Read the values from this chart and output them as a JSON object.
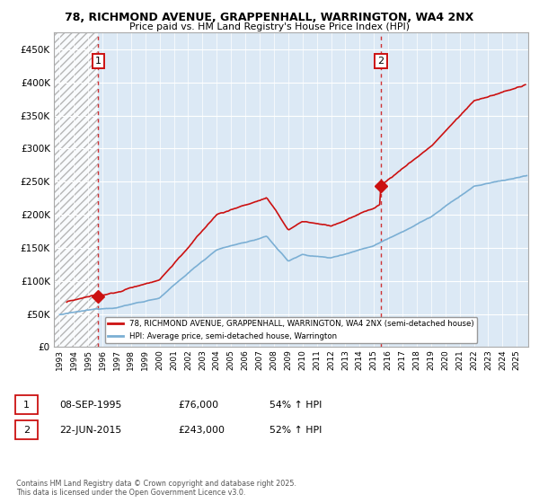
{
  "title_line1": "78, RICHMOND AVENUE, GRAPPENHALL, WARRINGTON, WA4 2NX",
  "title_line2": "Price paid vs. HM Land Registry's House Price Index (HPI)",
  "ylim": [
    0,
    475000
  ],
  "yticks": [
    0,
    50000,
    100000,
    150000,
    200000,
    250000,
    300000,
    350000,
    400000,
    450000
  ],
  "ytick_labels": [
    "£0",
    "£50K",
    "£100K",
    "£150K",
    "£200K",
    "£250K",
    "£300K",
    "£350K",
    "£400K",
    "£450K"
  ],
  "xmin": 1992.6,
  "xmax": 2025.8,
  "hpi_color": "#7bafd4",
  "price_color": "#cc1111",
  "background_color": "#ffffff",
  "plot_bg_color": "#dce9f5",
  "sale1_x": 1995.69,
  "sale1_y": 76000,
  "sale2_x": 2015.48,
  "sale2_y": 243000,
  "annotation1": "1",
  "annotation2": "2",
  "legend_label1": "78, RICHMOND AVENUE, GRAPPENHALL, WARRINGTON, WA4 2NX (semi-detached house)",
  "legend_label2": "HPI: Average price, semi-detached house, Warrington",
  "footnote": "Contains HM Land Registry data © Crown copyright and database right 2025.\nThis data is licensed under the Open Government Licence v3.0.",
  "table_row1": [
    "1",
    "08-SEP-1995",
    "£76,000",
    "54% ↑ HPI"
  ],
  "table_row2": [
    "2",
    "22-JUN-2015",
    "£243,000",
    "52% ↑ HPI"
  ]
}
